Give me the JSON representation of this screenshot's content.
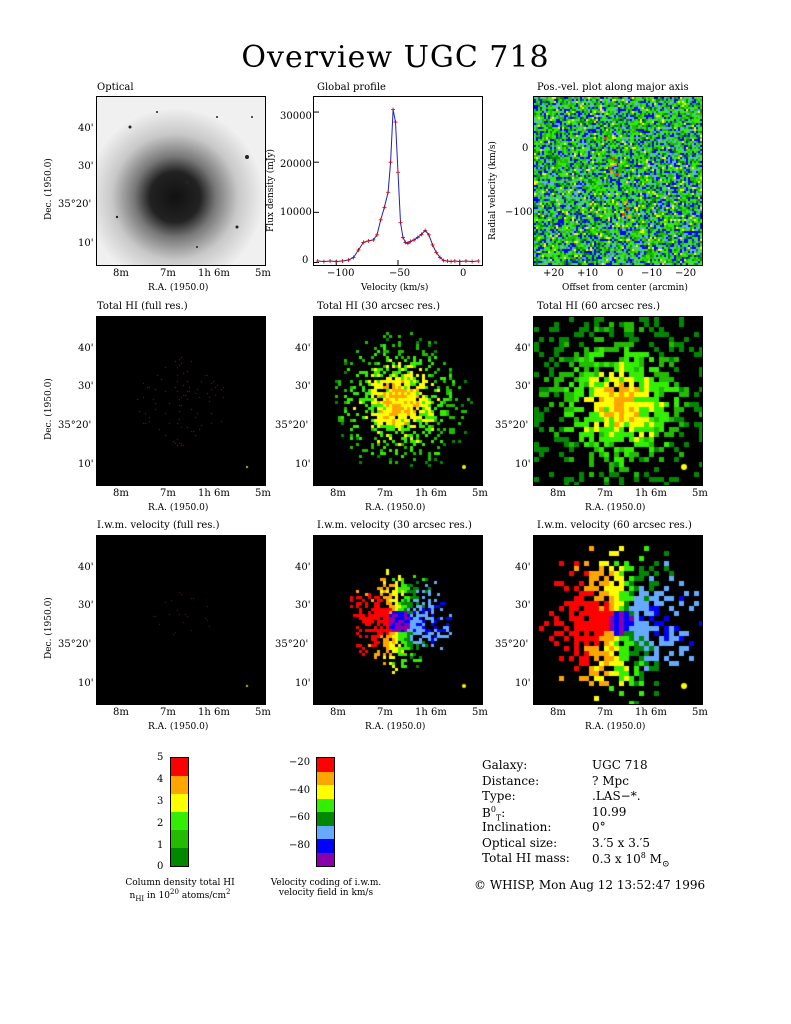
{
  "title": "Overview UGC 718",
  "panels": {
    "optical": {
      "title": "Optical"
    },
    "global_profile": {
      "title": "Global profile"
    },
    "pv_plot": {
      "title": "Pos.-vel. plot along major axis"
    },
    "totalhi_full": {
      "title": "Total HI (full res.)"
    },
    "totalhi_30": {
      "title": "Total HI (30 arcsec res.)"
    },
    "totalhi_60": {
      "title": "Total HI (60 arcsec res.)"
    },
    "iwm_full": {
      "title": "I.w.m. velocity (full res.)"
    },
    "iwm_30": {
      "title": "I.w.m. velocity (30 arcsec res.)"
    },
    "iwm_60": {
      "title": "I.w.m. velocity (60 arcsec res.)"
    }
  },
  "sky_axes": {
    "dec_label": "Dec. (1950.0)",
    "ra_label": "R.A. (1950.0)",
    "dec_ticks": [
      "40'",
      "30'",
      "35°20'",
      "10'"
    ],
    "ra_ticks": [
      "8m",
      "7m",
      "1h 6m",
      "5m"
    ]
  },
  "profile_axes": {
    "ylabel": "Flux density (mJy)",
    "xlabel": "Velocity (km/s)",
    "yticks": [
      "30000",
      "20000",
      "10000",
      "0"
    ],
    "xticks": [
      "−100",
      "−50",
      "0"
    ]
  },
  "pv_axes": {
    "ylabel": "Radial velocity (km/s)",
    "xlabel": "Offset from center (arcmin)",
    "yticks": [
      "0",
      "−100"
    ],
    "xticks": [
      "+20",
      "+10",
      "0",
      "−10",
      "−20"
    ]
  },
  "colorbars": {
    "density": {
      "ticks": [
        "5",
        "4",
        "3",
        "2",
        "1",
        "0"
      ],
      "colors": [
        "#ff0000",
        "#ffa500",
        "#ffff00",
        "#33ee00",
        "#22bb00",
        "#008800"
      ],
      "caption_line1": "Column density total HI",
      "caption_line2": "n",
      "caption_line2_sub": "HI",
      "caption_line2_mid": " in 10",
      "caption_line2_sup": "20",
      "caption_line2_end": " atoms/cm",
      "caption_line2_sup2": "2"
    },
    "velocity": {
      "ticks": [
        "−20",
        "−40",
        "−60",
        "−80"
      ],
      "colors": [
        "#ff0000",
        "#ffa500",
        "#ffff00",
        "#33ee00",
        "#008800",
        "#66aaff",
        "#0000ff",
        "#8800aa"
      ],
      "caption_line1": "Velocity coding of i.w.m.",
      "caption_line2": "velocity field in km/s"
    }
  },
  "info": {
    "rows": [
      {
        "label": "Galaxy:",
        "value": "UGC 718"
      },
      {
        "label": "Distance:",
        "value": "? Mpc"
      },
      {
        "label": "Type:",
        "value": ".LAS−*."
      },
      {
        "label": "B",
        "value": "10.99"
      },
      {
        "label": "Inclination:",
        "value": "0°"
      },
      {
        "label": "Optical size:",
        "value": "3.′5 x 3.′5"
      },
      {
        "label": "Total HI mass:",
        "value": "0.3 x 10"
      }
    ],
    "b_sup": "0",
    "b_sub": "T",
    "b_colon": ":",
    "mass_exp": "8",
    "mass_unit": " M",
    "mass_sun": "⊙"
  },
  "credit": "© WHISP, Mon Aug 12 13:52:47 1996",
  "chart_data": {
    "type": "line",
    "title": "Global profile",
    "xlabel": "Velocity (km/s)",
    "ylabel": "Flux density (mJy)",
    "xlim": [
      -118,
      18
    ],
    "ylim": [
      -500,
      33000
    ],
    "x": [
      -115,
      -110,
      -105,
      -100,
      -95,
      -90,
      -86,
      -82,
      -78,
      -74,
      -70,
      -67,
      -64,
      -61,
      -58,
      -56,
      -54,
      -52,
      -50,
      -48,
      -46,
      -44,
      -42,
      -40,
      -37,
      -34,
      -31,
      -28,
      -25,
      -22,
      -19,
      -16,
      -13,
      -10,
      -7,
      -4,
      0,
      5,
      10,
      15
    ],
    "series": [
      {
        "values": [
          300,
          200,
          300,
          200,
          300,
          500,
          1000,
          2500,
          4000,
          4300,
          4500,
          5500,
          8500,
          11000,
          14000,
          20000,
          30500,
          28000,
          18000,
          8000,
          5000,
          4000,
          3800,
          4200,
          4500,
          5000,
          5600,
          6400,
          5500,
          3500,
          2000,
          1000,
          400,
          300,
          200,
          300,
          200,
          300,
          200,
          300
        ]
      }
    ]
  }
}
